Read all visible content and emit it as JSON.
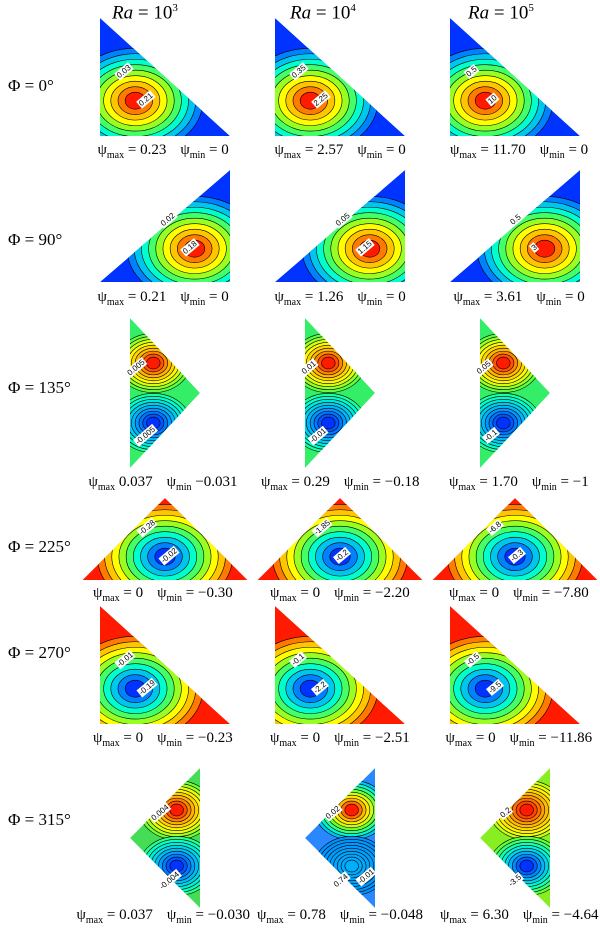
{
  "columns": [
    {
      "var": "Ra",
      "eq": " = 10",
      "exp": "3"
    },
    {
      "var": "Ra",
      "eq": " = 10",
      "exp": "4"
    },
    {
      "var": "Ra",
      "eq": " = 10",
      "exp": "5"
    }
  ],
  "rows": [
    {
      "label": "Φ = 0°",
      "shape": "ul",
      "cells": [
        {
          "psi": "ψ",
          "max_sub": "max",
          "max": " = 0.23",
          "min_sub": "min",
          "min": " = 0",
          "fill": "#0033ff",
          "core": "#ff1a00",
          "labels": [
            "0.03",
            "0.21"
          ]
        },
        {
          "psi": "ψ",
          "max_sub": "max",
          "max": " = 2.57",
          "min_sub": "min",
          "min": " = 0",
          "fill": "#0033ff",
          "core": "#ff1a00",
          "labels": [
            "0.35",
            "2.25"
          ]
        },
        {
          "psi": "ψ",
          "max_sub": "max",
          "max": " = 11.70",
          "min_sub": "min",
          "min": " = 0",
          "fill": "#0033ff",
          "core": "#ff1a00",
          "labels": [
            "0.5",
            "10"
          ]
        }
      ]
    },
    {
      "label": "Φ = 90°",
      "shape": "lr",
      "cells": [
        {
          "psi": "ψ",
          "max_sub": "max",
          "max": " = 0.21",
          "min_sub": "min",
          "min": " = 0",
          "fill": "#0033ff",
          "core": "#ff1a00",
          "labels": [
            "0.02",
            "0.18"
          ]
        },
        {
          "psi": "ψ",
          "max_sub": "max",
          "max": " = 1.26",
          "min_sub": "min",
          "min": " = 0",
          "fill": "#0033ff",
          "core": "#ff1a00",
          "labels": [
            "0.05",
            "1.15"
          ]
        },
        {
          "psi": "ψ",
          "max_sub": "max",
          "max": " = 3.61",
          "min_sub": "min",
          "min": " = 0",
          "fill": "#0033ff",
          "core": "#ff1a00",
          "labels": [
            "0.5",
            "3"
          ]
        }
      ]
    },
    {
      "label": "Φ = 135°",
      "shape": "right",
      "cells": [
        {
          "psi": "ψ",
          "max_sub": "max",
          "max": " 0.037",
          "min_sub": "min",
          "min": " −0.031",
          "fill": "#33ee66",
          "core": "#ff1a00",
          "core2": "#0033ff",
          "labels": [
            "0.005",
            "-0.005"
          ]
        },
        {
          "psi": "ψ",
          "max_sub": "max",
          "max": " = 0.29",
          "min_sub": "min",
          "min": " = −0.18",
          "fill": "#33ee66",
          "core": "#ff1a00",
          "core2": "#0033ff",
          "labels": [
            "0.01",
            "-0.01"
          ]
        },
        {
          "psi": "ψ",
          "max_sub": "max",
          "max": " = 1.70",
          "min_sub": "min",
          "min": " = −1",
          "fill": "#33ee66",
          "core": "#ff1a00",
          "core2": "#0033ff",
          "labels": [
            "0.05",
            "-0.1"
          ]
        }
      ]
    },
    {
      "label": "Φ = 225°",
      "shape": "up",
      "cells": [
        {
          "psi": "ψ",
          "max_sub": "max",
          "max": " = 0",
          "min_sub": "min",
          "min": " = −0.30",
          "fill": "#ff1a00",
          "core": "#0033ff",
          "labels": [
            "-0.28",
            "-0.02"
          ]
        },
        {
          "psi": "ψ",
          "max_sub": "max",
          "max": " = 0",
          "min_sub": "min",
          "min": " = −2.20",
          "fill": "#ff1a00",
          "core": "#0033ff",
          "labels": [
            "-1.85",
            "-0.2"
          ]
        },
        {
          "psi": "ψ",
          "max_sub": "max",
          "max": " = 0",
          "min_sub": "min",
          "min": " = −7.80",
          "fill": "#ff1a00",
          "core": "#0033ff",
          "labels": [
            "-6.8",
            "-0.3"
          ]
        }
      ]
    },
    {
      "label": "Φ = 270°",
      "shape": "ul",
      "cells": [
        {
          "psi": "ψ",
          "max_sub": "max",
          "max": " = 0",
          "min_sub": "min",
          "min": " = −0.23",
          "fill": "#ff1a00",
          "core": "#0033ff",
          "labels": [
            "-0.01",
            "-0.19"
          ]
        },
        {
          "psi": "ψ",
          "max_sub": "max",
          "max": " = 0",
          "min_sub": "min",
          "min": " = −2.51",
          "fill": "#ff1a00",
          "core": "#0033ff",
          "labels": [
            "-0.1",
            "-2.2"
          ]
        },
        {
          "psi": "ψ",
          "max_sub": "max",
          "max": " = 0",
          "min_sub": "min",
          "min": " = −11.86",
          "fill": "#ff1a00",
          "core": "#0033ff",
          "labels": [
            "-0.5",
            "-9.5"
          ]
        }
      ]
    },
    {
      "label": "Φ = 315°",
      "shape": "left",
      "cells": [
        {
          "psi": "ψ",
          "max_sub": "max",
          "max": " = 0.037",
          "min_sub": "min",
          "min": " = −0.030",
          "fill": "#44dd55",
          "core": "#ff1a00",
          "core2": "#0033ff",
          "labels": [
            "0.004",
            "-0.004"
          ]
        },
        {
          "psi": "ψ",
          "max_sub": "max",
          "max": " = 0.78",
          "min_sub": "min",
          "min": " = −0.048",
          "fill": "#2a88ff",
          "core": "#ff1a00",
          "core2": "#33aaff",
          "labels": [
            "0.02",
            "0.74",
            "-0.01"
          ]
        },
        {
          "psi": "ψ",
          "max_sub": "max",
          "max": " = 6.30",
          "min_sub": "min",
          "min": " = −4.64",
          "fill": "#88ee22",
          "core": "#ff1a00",
          "core2": "#0033ff",
          "labels": [
            "0.2",
            "-3.5"
          ]
        }
      ]
    }
  ]
}
